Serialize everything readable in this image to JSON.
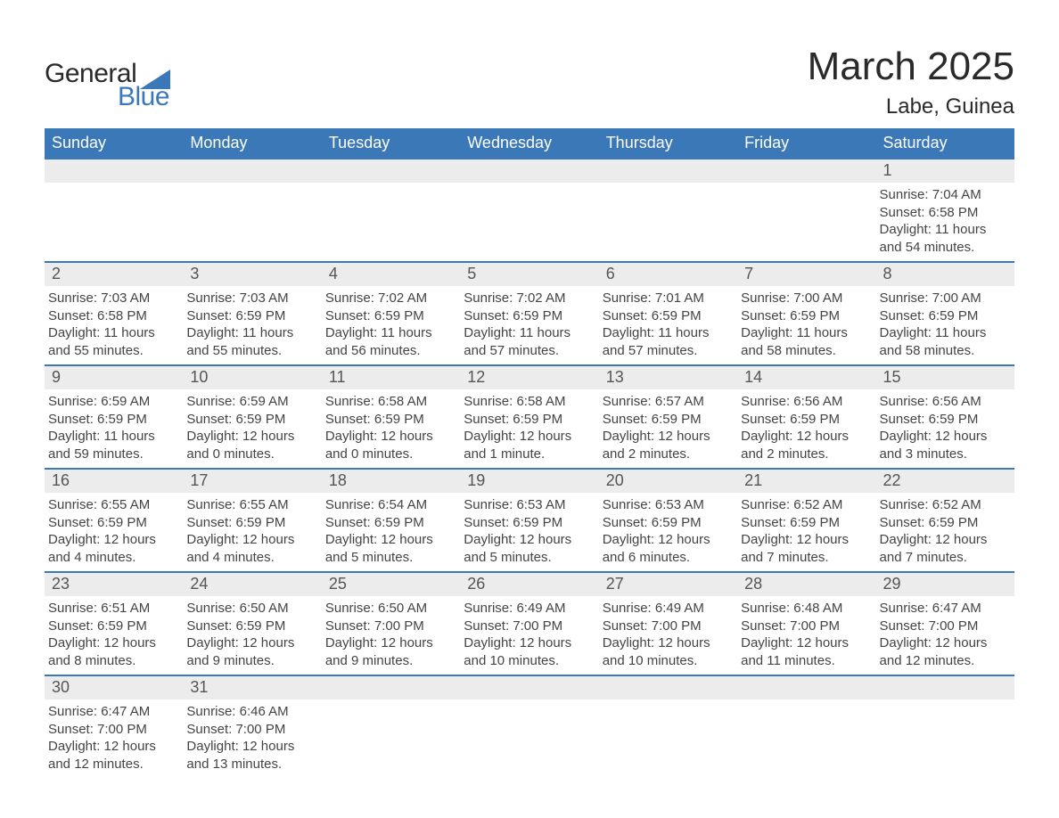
{
  "logo": {
    "text_general": "General",
    "text_blue": "Blue"
  },
  "title": "March 2025",
  "location": "Labe, Guinea",
  "colors": {
    "header_bg": "#3b78b8",
    "header_text": "#ffffff",
    "daynum_bg": "#ececec",
    "text": "#444444",
    "title_text": "#2a2a2a",
    "row_border": "#3b78b8",
    "page_bg": "#ffffff"
  },
  "typography": {
    "title_fontsize": 44,
    "location_fontsize": 24,
    "weekday_fontsize": 18,
    "daynum_fontsize": 18,
    "body_fontsize": 15
  },
  "calendar": {
    "type": "table",
    "weekdays": [
      "Sunday",
      "Monday",
      "Tuesday",
      "Wednesday",
      "Thursday",
      "Friday",
      "Saturday"
    ],
    "weeks": [
      [
        null,
        null,
        null,
        null,
        null,
        null,
        {
          "day": "1",
          "sunrise": "Sunrise: 7:04 AM",
          "sunset": "Sunset: 6:58 PM",
          "daylight": "Daylight: 11 hours and 54 minutes."
        }
      ],
      [
        {
          "day": "2",
          "sunrise": "Sunrise: 7:03 AM",
          "sunset": "Sunset: 6:58 PM",
          "daylight": "Daylight: 11 hours and 55 minutes."
        },
        {
          "day": "3",
          "sunrise": "Sunrise: 7:03 AM",
          "sunset": "Sunset: 6:59 PM",
          "daylight": "Daylight: 11 hours and 55 minutes."
        },
        {
          "day": "4",
          "sunrise": "Sunrise: 7:02 AM",
          "sunset": "Sunset: 6:59 PM",
          "daylight": "Daylight: 11 hours and 56 minutes."
        },
        {
          "day": "5",
          "sunrise": "Sunrise: 7:02 AM",
          "sunset": "Sunset: 6:59 PM",
          "daylight": "Daylight: 11 hours and 57 minutes."
        },
        {
          "day": "6",
          "sunrise": "Sunrise: 7:01 AM",
          "sunset": "Sunset: 6:59 PM",
          "daylight": "Daylight: 11 hours and 57 minutes."
        },
        {
          "day": "7",
          "sunrise": "Sunrise: 7:00 AM",
          "sunset": "Sunset: 6:59 PM",
          "daylight": "Daylight: 11 hours and 58 minutes."
        },
        {
          "day": "8",
          "sunrise": "Sunrise: 7:00 AM",
          "sunset": "Sunset: 6:59 PM",
          "daylight": "Daylight: 11 hours and 58 minutes."
        }
      ],
      [
        {
          "day": "9",
          "sunrise": "Sunrise: 6:59 AM",
          "sunset": "Sunset: 6:59 PM",
          "daylight": "Daylight: 11 hours and 59 minutes."
        },
        {
          "day": "10",
          "sunrise": "Sunrise: 6:59 AM",
          "sunset": "Sunset: 6:59 PM",
          "daylight": "Daylight: 12 hours and 0 minutes."
        },
        {
          "day": "11",
          "sunrise": "Sunrise: 6:58 AM",
          "sunset": "Sunset: 6:59 PM",
          "daylight": "Daylight: 12 hours and 0 minutes."
        },
        {
          "day": "12",
          "sunrise": "Sunrise: 6:58 AM",
          "sunset": "Sunset: 6:59 PM",
          "daylight": "Daylight: 12 hours and 1 minute."
        },
        {
          "day": "13",
          "sunrise": "Sunrise: 6:57 AM",
          "sunset": "Sunset: 6:59 PM",
          "daylight": "Daylight: 12 hours and 2 minutes."
        },
        {
          "day": "14",
          "sunrise": "Sunrise: 6:56 AM",
          "sunset": "Sunset: 6:59 PM",
          "daylight": "Daylight: 12 hours and 2 minutes."
        },
        {
          "day": "15",
          "sunrise": "Sunrise: 6:56 AM",
          "sunset": "Sunset: 6:59 PM",
          "daylight": "Daylight: 12 hours and 3 minutes."
        }
      ],
      [
        {
          "day": "16",
          "sunrise": "Sunrise: 6:55 AM",
          "sunset": "Sunset: 6:59 PM",
          "daylight": "Daylight: 12 hours and 4 minutes."
        },
        {
          "day": "17",
          "sunrise": "Sunrise: 6:55 AM",
          "sunset": "Sunset: 6:59 PM",
          "daylight": "Daylight: 12 hours and 4 minutes."
        },
        {
          "day": "18",
          "sunrise": "Sunrise: 6:54 AM",
          "sunset": "Sunset: 6:59 PM",
          "daylight": "Daylight: 12 hours and 5 minutes."
        },
        {
          "day": "19",
          "sunrise": "Sunrise: 6:53 AM",
          "sunset": "Sunset: 6:59 PM",
          "daylight": "Daylight: 12 hours and 5 minutes."
        },
        {
          "day": "20",
          "sunrise": "Sunrise: 6:53 AM",
          "sunset": "Sunset: 6:59 PM",
          "daylight": "Daylight: 12 hours and 6 minutes."
        },
        {
          "day": "21",
          "sunrise": "Sunrise: 6:52 AM",
          "sunset": "Sunset: 6:59 PM",
          "daylight": "Daylight: 12 hours and 7 minutes."
        },
        {
          "day": "22",
          "sunrise": "Sunrise: 6:52 AM",
          "sunset": "Sunset: 6:59 PM",
          "daylight": "Daylight: 12 hours and 7 minutes."
        }
      ],
      [
        {
          "day": "23",
          "sunrise": "Sunrise: 6:51 AM",
          "sunset": "Sunset: 6:59 PM",
          "daylight": "Daylight: 12 hours and 8 minutes."
        },
        {
          "day": "24",
          "sunrise": "Sunrise: 6:50 AM",
          "sunset": "Sunset: 6:59 PM",
          "daylight": "Daylight: 12 hours and 9 minutes."
        },
        {
          "day": "25",
          "sunrise": "Sunrise: 6:50 AM",
          "sunset": "Sunset: 7:00 PM",
          "daylight": "Daylight: 12 hours and 9 minutes."
        },
        {
          "day": "26",
          "sunrise": "Sunrise: 6:49 AM",
          "sunset": "Sunset: 7:00 PM",
          "daylight": "Daylight: 12 hours and 10 minutes."
        },
        {
          "day": "27",
          "sunrise": "Sunrise: 6:49 AM",
          "sunset": "Sunset: 7:00 PM",
          "daylight": "Daylight: 12 hours and 10 minutes."
        },
        {
          "day": "28",
          "sunrise": "Sunrise: 6:48 AM",
          "sunset": "Sunset: 7:00 PM",
          "daylight": "Daylight: 12 hours and 11 minutes."
        },
        {
          "day": "29",
          "sunrise": "Sunrise: 6:47 AM",
          "sunset": "Sunset: 7:00 PM",
          "daylight": "Daylight: 12 hours and 12 minutes."
        }
      ],
      [
        {
          "day": "30",
          "sunrise": "Sunrise: 6:47 AM",
          "sunset": "Sunset: 7:00 PM",
          "daylight": "Daylight: 12 hours and 12 minutes."
        },
        {
          "day": "31",
          "sunrise": "Sunrise: 6:46 AM",
          "sunset": "Sunset: 7:00 PM",
          "daylight": "Daylight: 12 hours and 13 minutes."
        },
        null,
        null,
        null,
        null,
        null
      ]
    ]
  }
}
